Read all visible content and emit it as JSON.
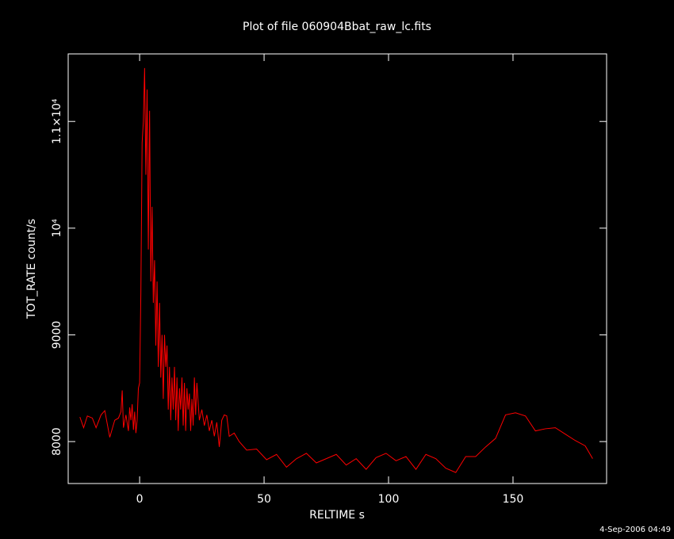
{
  "chart_data": {
    "type": "line",
    "title": "Plot of file 060904Bbat_raw_lc.fits",
    "x_label": "RELTIME  s",
    "y_label": "TOT_RATE  count/s",
    "footer": "4-Sep-2006 04:49",
    "color": "#ff0000",
    "x": [
      -24,
      -22.5,
      -21,
      -19,
      -17.5,
      -15.5,
      -14,
      -12,
      -10,
      -8.5,
      -7.5,
      -7,
      -6.5,
      -5.5,
      -4.5,
      -4,
      -3.5,
      -3,
      -2.5,
      -2,
      -1.5,
      -1,
      -0.5,
      0,
      0.5,
      1,
      1.5,
      2,
      2.5,
      3,
      3.5,
      4,
      4.5,
      5,
      5.5,
      6,
      6.5,
      7,
      7.5,
      8,
      8.5,
      9,
      9.5,
      10,
      10.5,
      11,
      11.5,
      12,
      12.5,
      13,
      13.5,
      14,
      14.5,
      15,
      15.5,
      16,
      16.5,
      17,
      17.5,
      18,
      18.5,
      19,
      19.5,
      20,
      20.5,
      21,
      21.5,
      22,
      22.5,
      23,
      24,
      25,
      26,
      27,
      28,
      29,
      30,
      31,
      32,
      33,
      34,
      35,
      36,
      38,
      40,
      43,
      47,
      51,
      55,
      59,
      63,
      67,
      71,
      75,
      79,
      83,
      87,
      91,
      95,
      99,
      103,
      107,
      111,
      115,
      119,
      123,
      127,
      131,
      135,
      139,
      143,
      147,
      151,
      155,
      159,
      163,
      167,
      171,
      175,
      179,
      182
    ],
    "values": [
      8230,
      8130,
      8240,
      8220,
      8130,
      8250,
      8290,
      8040,
      8200,
      8220,
      8280,
      8480,
      8130,
      8250,
      8100,
      8320,
      8200,
      8350,
      8110,
      8280,
      8080,
      8200,
      8500,
      8550,
      9400,
      10800,
      11000,
      11500,
      10500,
      11300,
      9800,
      11100,
      9500,
      10200,
      9300,
      9700,
      8900,
      9500,
      8700,
      9300,
      8600,
      9000,
      8400,
      9000,
      8700,
      8900,
      8300,
      8700,
      8200,
      8600,
      8300,
      8700,
      8200,
      8600,
      8100,
      8500,
      8300,
      8600,
      8150,
      8550,
      8100,
      8500,
      8300,
      8450,
      8100,
      8400,
      8150,
      8600,
      8250,
      8550,
      8200,
      8300,
      8150,
      8250,
      8100,
      8200,
      8050,
      8180,
      7950,
      8200,
      8250,
      8240,
      8050,
      8080,
      8000,
      7920,
      7930,
      7830,
      7880,
      7760,
      7840,
      7890,
      7800,
      7840,
      7880,
      7780,
      7840,
      7740,
      7850,
      7890,
      7820,
      7860,
      7740,
      7880,
      7840,
      7750,
      7710,
      7860,
      7860,
      7950,
      8030,
      8250,
      8270,
      8240,
      8100,
      8120,
      8130,
      8070,
      8010,
      7960,
      7840
    ],
    "xlim": [
      -28.7,
      187.6
    ],
    "ylim": [
      7607,
      11633
    ],
    "xticks": [
      0,
      50,
      100,
      150
    ],
    "yticks": [
      8000,
      9000,
      {
        "value": 10000,
        "label": "10⁴"
      },
      {
        "value": 11000,
        "label": "1.1×10⁴"
      }
    ]
  }
}
